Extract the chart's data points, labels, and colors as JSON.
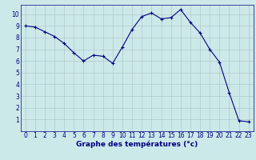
{
  "x": [
    0,
    1,
    2,
    3,
    4,
    5,
    6,
    7,
    8,
    9,
    10,
    11,
    12,
    13,
    14,
    15,
    16,
    17,
    18,
    19,
    20,
    21,
    22,
    23
  ],
  "y": [
    9.0,
    8.9,
    8.5,
    8.1,
    7.5,
    6.7,
    6.0,
    6.5,
    6.4,
    5.8,
    7.2,
    8.7,
    9.8,
    10.1,
    9.6,
    9.7,
    10.4,
    9.3,
    8.4,
    7.0,
    5.9,
    3.3,
    0.9,
    0.8
  ],
  "line_color": "#000080",
  "marker": "+",
  "marker_color": "#000080",
  "bg_color": "#cce9e9",
  "grid_color": "#b0c8c8",
  "xlabel": "Graphe des températures (°c)",
  "xlabel_color": "#000080",
  "xlabel_fontsize": 6.5,
  "xlim": [
    -0.5,
    23.5
  ],
  "ylim": [
    0,
    10.8
  ],
  "yticks": [
    1,
    2,
    3,
    4,
    5,
    6,
    7,
    8,
    9,
    10
  ],
  "xticks": [
    0,
    1,
    2,
    3,
    4,
    5,
    6,
    7,
    8,
    9,
    10,
    11,
    12,
    13,
    14,
    15,
    16,
    17,
    18,
    19,
    20,
    21,
    22,
    23
  ],
  "tick_color": "#000080",
  "tick_fontsize": 5.5,
  "line_width": 0.8,
  "marker_size": 3
}
